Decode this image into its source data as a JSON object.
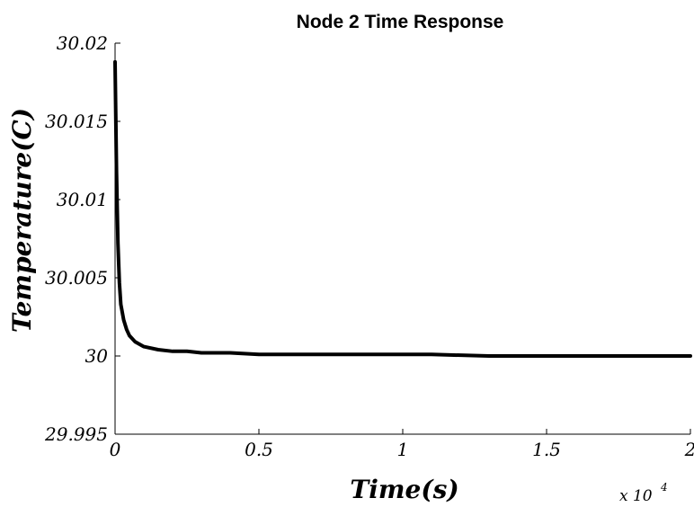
{
  "chart_data": {
    "type": "line",
    "title": "Node 2 Time Response",
    "xlabel": "Time(s)",
    "ylabel": "Temperature(C)",
    "x_multiplier_label": "x 10",
    "x_multiplier_exponent": "4",
    "xlim": [
      0,
      2
    ],
    "ylim": [
      29.995,
      30.02
    ],
    "x_ticks": [
      0,
      0.5,
      1,
      1.5,
      2
    ],
    "x_tick_labels": [
      "0",
      "0.5",
      "1",
      "1.5",
      "2"
    ],
    "y_ticks": [
      29.995,
      30,
      30.005,
      30.01,
      30.015,
      30.02
    ],
    "y_tick_labels": [
      "29.995",
      "30",
      "30.005",
      "30.01",
      "30.015",
      "30.02"
    ],
    "grid": false,
    "series": [
      {
        "color": "#000000",
        "x": [
          0,
          0.005,
          0.01,
          0.015,
          0.02,
          0.03,
          0.04,
          0.05,
          0.07,
          0.1,
          0.15,
          0.2,
          0.25,
          0.3,
          0.4,
          0.5,
          0.7,
          0.9,
          1.1,
          1.3,
          1.5,
          1.7,
          2.0
        ],
        "y": [
          30.0188,
          30.0118,
          30.0072,
          30.0047,
          30.0033,
          30.0023,
          30.0017,
          30.0013,
          30.0009,
          30.0006,
          30.0004,
          30.0003,
          30.0003,
          30.0002,
          30.0002,
          30.0001,
          30.0001,
          30.0001,
          30.0001,
          30.0,
          30.0,
          30.0,
          30.0
        ]
      }
    ]
  }
}
